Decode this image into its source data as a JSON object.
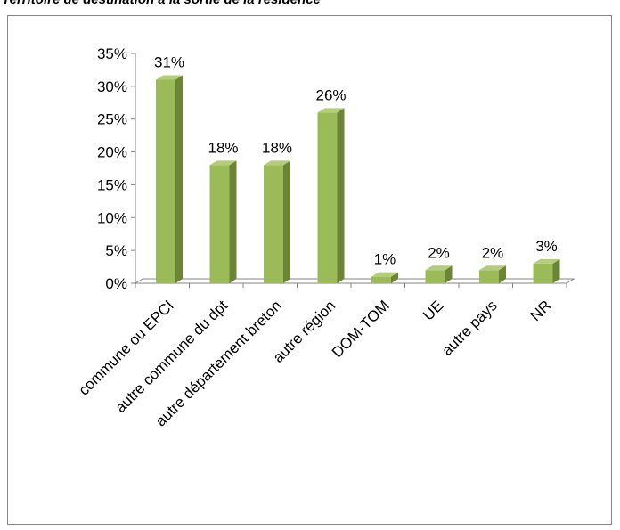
{
  "page": {
    "title": "Territoire de destination à la sortie de la résidence"
  },
  "chart_data": {
    "type": "bar",
    "style": "3d-column",
    "categories": [
      "commune ou EPCI",
      "autre commune du dpt",
      "autre département breton",
      "autre région",
      "DOM-TOM",
      "UE",
      "autre pays",
      "NR"
    ],
    "values": [
      31,
      18,
      18,
      26,
      1,
      2,
      2,
      3
    ],
    "data_labels": [
      "31%",
      "18%",
      "18%",
      "26%",
      "1%",
      "2%",
      "2%",
      "3%"
    ],
    "yticks": [
      "0%",
      "5%",
      "10%",
      "15%",
      "20%",
      "25%",
      "30%",
      "35%"
    ],
    "ylim": [
      0,
      35
    ],
    "legend": "none",
    "colors": {
      "bar_front": "#9BBB59",
      "bar_side": "#6B8436",
      "bar_top": "#B3CD7A",
      "axis": "#868686"
    }
  }
}
